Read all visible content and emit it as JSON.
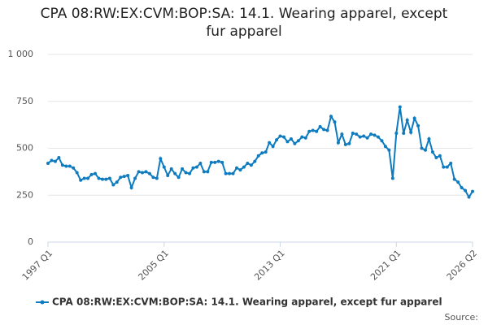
{
  "chart_data": {
    "type": "line",
    "title": "CPA 08:RW:EX:CVM:BOP:SA: 14.1. Wearing apparel, except fur apparel",
    "source": "Source:",
    "categories": [
      "1997 Q1",
      null,
      null,
      null,
      null,
      null,
      null,
      null,
      null,
      null,
      null,
      null,
      null,
      null,
      null,
      null,
      null,
      null,
      null,
      null,
      null,
      null,
      null,
      null,
      null,
      null,
      null,
      null,
      null,
      null,
      null,
      null,
      "2005 Q1",
      null,
      null,
      null,
      null,
      null,
      null,
      null,
      null,
      null,
      null,
      null,
      null,
      null,
      null,
      null,
      null,
      null,
      null,
      null,
      null,
      null,
      null,
      null,
      null,
      null,
      null,
      null,
      null,
      null,
      null,
      null,
      "2013 Q1",
      null,
      null,
      null,
      null,
      null,
      null,
      null,
      null,
      null,
      null,
      null,
      null,
      null,
      null,
      null,
      null,
      null,
      null,
      null,
      null,
      null,
      null,
      null,
      null,
      null,
      null,
      null,
      null,
      null,
      null,
      null,
      "2021 Q1",
      null,
      null,
      null,
      null,
      null,
      null,
      null,
      null,
      null,
      null,
      null,
      null,
      null,
      null,
      null,
      null,
      null,
      null,
      null,
      null,
      "2026 Q2"
    ],
    "series": [
      {
        "name": "CPA 08:RW:EX:CVM:BOP:SA: 14.1. Wearing apparel, except fur apparel",
        "color": "#0e7bbf",
        "values": [
          420,
          435,
          430,
          450,
          410,
          405,
          405,
          395,
          370,
          330,
          340,
          340,
          360,
          365,
          340,
          335,
          335,
          340,
          305,
          320,
          345,
          350,
          355,
          290,
          340,
          375,
          370,
          375,
          365,
          345,
          340,
          445,
          400,
          355,
          390,
          365,
          345,
          390,
          370,
          365,
          395,
          400,
          420,
          375,
          375,
          425,
          425,
          430,
          425,
          365,
          365,
          365,
          395,
          385,
          400,
          420,
          410,
          430,
          460,
          475,
          480,
          530,
          510,
          545,
          565,
          560,
          535,
          550,
          525,
          540,
          560,
          555,
          590,
          595,
          590,
          615,
          600,
          595,
          670,
          640,
          530,
          575,
          520,
          525,
          580,
          575,
          560,
          565,
          555,
          575,
          570,
          560,
          540,
          510,
          490,
          340,
          580,
          720,
          580,
          650,
          585,
          660,
          620,
          500,
          490,
          550,
          480,
          450,
          460,
          400,
          400,
          420,
          335,
          320,
          290,
          275,
          240,
          270
        ]
      }
    ],
    "ylim": [
      0,
      1000
    ],
    "yticks": [
      0,
      250,
      500,
      750,
      {
        "value": 1000,
        "label": "1 000"
      }
    ],
    "grid": true
  }
}
